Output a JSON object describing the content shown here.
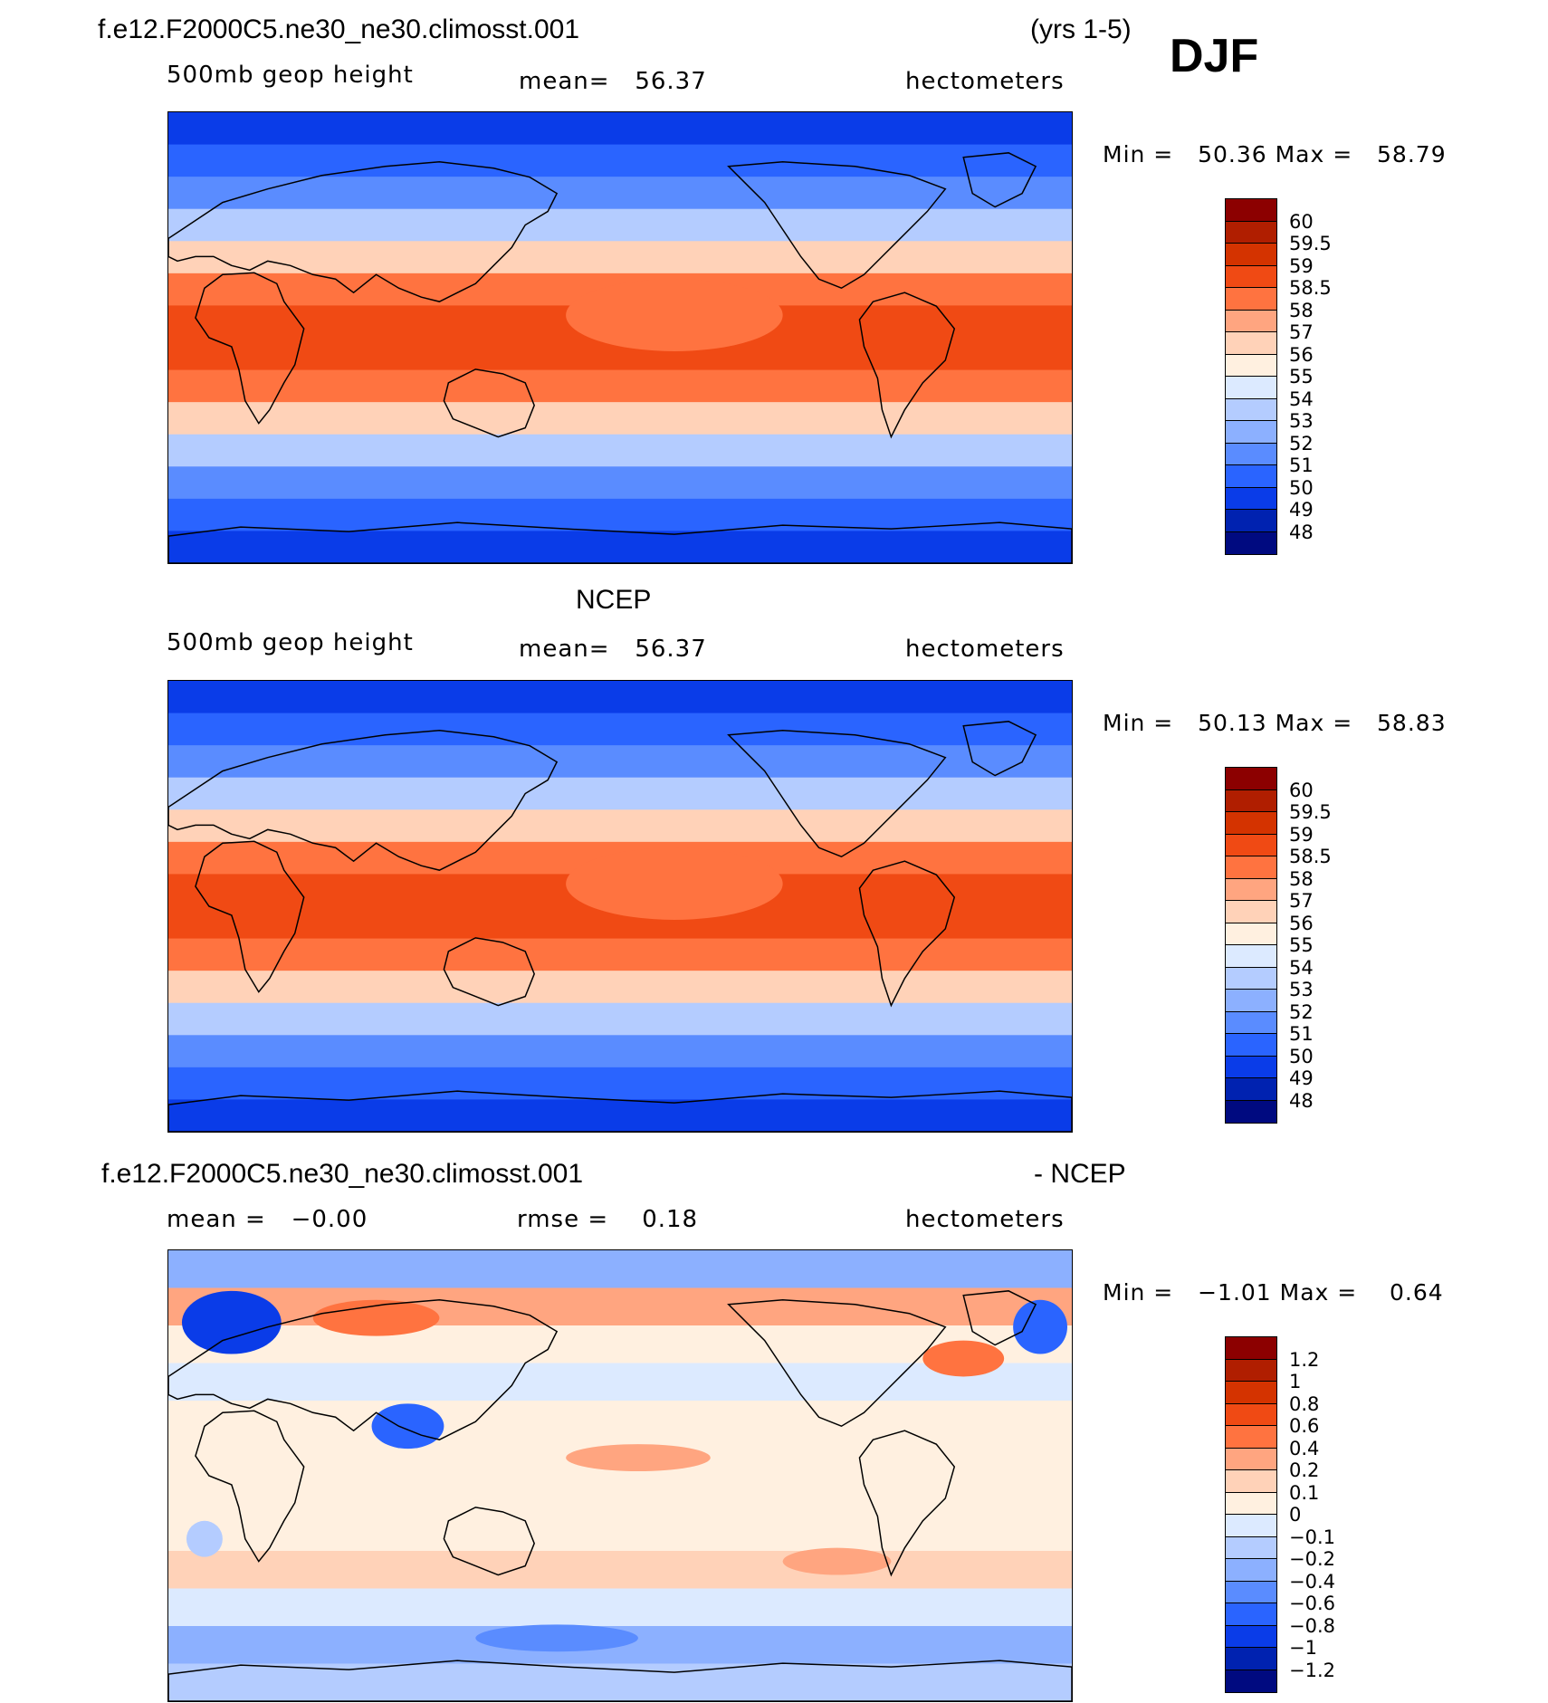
{
  "header": {
    "case_name": "f.e12.F2000C5.ne30_ne30.climosst.001",
    "years": "(yrs 1-5)",
    "season": "DJF"
  },
  "panels": [
    {
      "title": "",
      "field": "500mb geop height",
      "stat": "mean=   56.37",
      "units": "hectometers",
      "minmax": "Min =   50.36 Max =   58.79",
      "colorbar": {
        "labels": [
          "60",
          "59.5",
          "59",
          "58.5",
          "58",
          "57",
          "56",
          "55",
          "54",
          "53",
          "52",
          "51",
          "50",
          "49",
          "48"
        ],
        "colors": [
          "#8c0000",
          "#b01e00",
          "#d43300",
          "#f04a14",
          "#ff7340",
          "#ffa580",
          "#ffd2b8",
          "#fff0e0",
          "#dceaff",
          "#b4ccff",
          "#8cb0ff",
          "#5a8cff",
          "#2a64ff",
          "#0a3ce8",
          "#0022b0",
          "#000a80"
        ]
      },
      "map_bands": [
        "#0a3ce8",
        "#2a64ff",
        "#5a8cff",
        "#b4ccff",
        "#ffd2b8",
        "#ff7340",
        "#f04a14",
        "#f04a14",
        "#ff7340",
        "#ffd2b8",
        "#b4ccff",
        "#5a8cff",
        "#2a64ff",
        "#0a3ce8"
      ]
    },
    {
      "title": "NCEP",
      "field": "500mb geop height",
      "stat": "mean=   56.37",
      "units": "hectometers",
      "minmax": "Min =   50.13 Max =   58.83",
      "colorbar": {
        "labels": [
          "60",
          "59.5",
          "59",
          "58.5",
          "58",
          "57",
          "56",
          "55",
          "54",
          "53",
          "52",
          "51",
          "50",
          "49",
          "48"
        ],
        "colors": [
          "#8c0000",
          "#b01e00",
          "#d43300",
          "#f04a14",
          "#ff7340",
          "#ffa580",
          "#ffd2b8",
          "#fff0e0",
          "#dceaff",
          "#b4ccff",
          "#8cb0ff",
          "#5a8cff",
          "#2a64ff",
          "#0a3ce8",
          "#0022b0",
          "#000a80"
        ]
      },
      "map_bands": [
        "#0a3ce8",
        "#2a64ff",
        "#5a8cff",
        "#b4ccff",
        "#ffd2b8",
        "#ff7340",
        "#f04a14",
        "#f04a14",
        "#ff7340",
        "#ffd2b8",
        "#b4ccff",
        "#5a8cff",
        "#2a64ff",
        "#0a3ce8"
      ]
    },
    {
      "title": "f.e12.F2000C5.ne30_ne30.climosst.001",
      "title_right": "- NCEP",
      "field": "mean =   −0.00",
      "stat": "rmse =    0.18",
      "units": "hectometers",
      "minmax": "Min =   −1.01 Max =    0.64",
      "colorbar": {
        "labels": [
          "1.2",
          "1",
          "0.8",
          "0.6",
          "0.4",
          "0.2",
          "0.1",
          "0",
          "−0.1",
          "−0.2",
          "−0.4",
          "−0.6",
          "−0.8",
          "−1",
          "−1.2"
        ],
        "colors": [
          "#8c0000",
          "#b01e00",
          "#d43300",
          "#f04a14",
          "#ff7340",
          "#ffa580",
          "#ffd2b8",
          "#fff0e0",
          "#dceaff",
          "#b4ccff",
          "#8cb0ff",
          "#5a8cff",
          "#2a64ff",
          "#0a3ce8",
          "#0022b0",
          "#000a80"
        ]
      },
      "map_bands": [
        "#8cb0ff",
        "#ffa580",
        "#fff0e0",
        "#dceaff",
        "#fff0e0",
        "#fff0e0",
        "#fff0e0",
        "#fff0e0",
        "#ffd2b8",
        "#dceaff",
        "#8cb0ff",
        "#b4ccff"
      ]
    }
  ],
  "chart_data": [
    {
      "type": "heatmap",
      "title": "f.e12.F2000C5.ne30_ne30.climosst.001",
      "subtitle": "500mb geop height",
      "units": "hectometers",
      "mean": 56.37,
      "min": 50.36,
      "max": 58.79,
      "contour_levels": [
        48,
        49,
        50,
        51,
        52,
        53,
        54,
        55,
        56,
        57,
        58,
        58.5,
        59,
        59.5,
        60
      ]
    },
    {
      "type": "heatmap",
      "title": "NCEP",
      "subtitle": "500mb geop height",
      "units": "hectometers",
      "mean": 56.37,
      "min": 50.13,
      "max": 58.83,
      "contour_levels": [
        48,
        49,
        50,
        51,
        52,
        53,
        54,
        55,
        56,
        57,
        58,
        58.5,
        59,
        59.5,
        60
      ]
    },
    {
      "type": "heatmap",
      "title": "f.e12.F2000C5.ne30_ne30.climosst.001 - NCEP",
      "units": "hectometers",
      "mean": -0.0,
      "rmse": 0.18,
      "min": -1.01,
      "max": 0.64,
      "contour_levels": [
        -1.2,
        -1,
        -0.8,
        -0.6,
        -0.4,
        -0.2,
        -0.1,
        0,
        0.1,
        0.2,
        0.4,
        0.6,
        0.8,
        1,
        1.2
      ]
    }
  ]
}
